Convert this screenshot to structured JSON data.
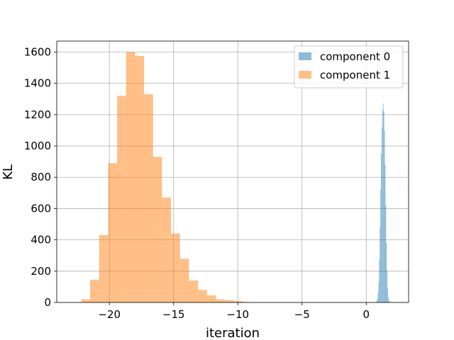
{
  "chart_data": {
    "type": "histogram",
    "title": "",
    "xlabel": "iteration",
    "ylabel": "KL",
    "xlim": [
      -24.1,
      3.3
    ],
    "ylim": [
      0,
      1670
    ],
    "grid": true,
    "legend_position": "top-right",
    "x_ticks": [
      {
        "value": -20,
        "label": "−20"
      },
      {
        "value": -15,
        "label": "−15"
      },
      {
        "value": -10,
        "label": "−10"
      },
      {
        "value": -5,
        "label": "−5"
      },
      {
        "value": 0,
        "label": "0"
      }
    ],
    "y_ticks": [
      {
        "value": 0,
        "label": "0"
      },
      {
        "value": 200,
        "label": "200"
      },
      {
        "value": 400,
        "label": "400"
      },
      {
        "value": 600,
        "label": "600"
      },
      {
        "value": 800,
        "label": "800"
      },
      {
        "value": 1000,
        "label": "1000"
      },
      {
        "value": 1200,
        "label": "1200"
      },
      {
        "value": 1400,
        "label": "1400"
      },
      {
        "value": 1600,
        "label": "1600"
      }
    ],
    "series": [
      {
        "name": "component 0",
        "color": "#1f77b4",
        "alpha": 0.5,
        "bin_edges": [
          0.75,
          0.8,
          0.85,
          0.9,
          0.95,
          1.0,
          1.05,
          1.1,
          1.15,
          1.2,
          1.25,
          1.3,
          1.35,
          1.4,
          1.45,
          1.5,
          1.55,
          1.6,
          1.65,
          1.7,
          1.75,
          1.8,
          1.85,
          1.9
        ],
        "counts": [
          4,
          10,
          25,
          60,
          130,
          270,
          480,
          720,
          950,
          1120,
          1230,
          1270,
          1220,
          1100,
          880,
          620,
          380,
          200,
          90,
          35,
          12,
          4,
          1
        ]
      },
      {
        "name": "component 1",
        "color": "#ff7f0e",
        "alpha": 0.5,
        "bin_edges": [
          -22.2,
          -21.5,
          -20.8,
          -20.1,
          -19.4,
          -18.7,
          -18.0,
          -17.3,
          -16.6,
          -15.9,
          -15.2,
          -14.5,
          -13.8,
          -13.1,
          -12.4,
          -11.7,
          -11.0,
          -10.3,
          -9.6,
          -8.9,
          -8.2
        ],
        "counts": [
          20,
          145,
          430,
          890,
          1320,
          1600,
          1575,
          1330,
          930,
          670,
          440,
          280,
          140,
          80,
          45,
          20,
          15,
          8,
          3,
          2
        ]
      }
    ]
  }
}
